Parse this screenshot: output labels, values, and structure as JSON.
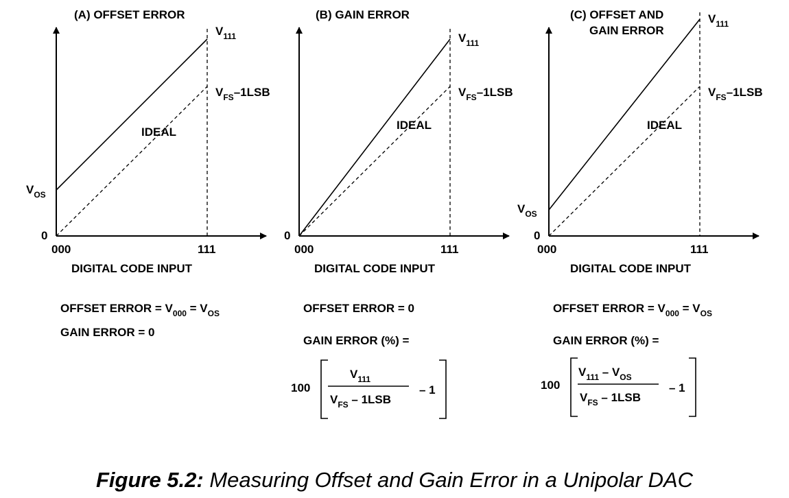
{
  "panels": [
    {
      "title": "(A) OFFSET ERROR",
      "y_top_label": "V",
      "y_top_sub": "111",
      "y_mid_label": "V",
      "y_mid_sub": "FS",
      "y_mid_rest": "–1LSB",
      "ideal_label": "IDEAL",
      "offset_label": "V",
      "offset_sub": "OS",
      "zero_label": "0",
      "x_start_label": "000",
      "x_end_label": "111",
      "x_axis_label": "DIGITAL CODE INPUT",
      "offset_eq": {
        "prefix": "OFFSET ERROR = V",
        "sub1": "000",
        "mid": " = V",
        "sub2": "OS"
      },
      "gain_eq": "GAIN ERROR = 0"
    },
    {
      "title": "(B) GAIN ERROR",
      "y_top_label": "V",
      "y_top_sub": "111",
      "y_mid_label": "V",
      "y_mid_sub": "FS",
      "y_mid_rest": "–1LSB",
      "ideal_label": "IDEAL",
      "zero_label": "0",
      "x_start_label": "000",
      "x_end_label": "111",
      "x_axis_label": "DIGITAL CODE INPUT",
      "offset_eq": "OFFSET ERROR = 0",
      "gain_eq": "GAIN ERROR (%) =",
      "formula": {
        "coef": "100",
        "num_v": "V",
        "num_sub": "111",
        "den_v": "V",
        "den_sub": "FS",
        "den_rest": " – 1LSB",
        "minus": "– 1"
      }
    },
    {
      "title_line1": "(C) OFFSET AND",
      "title_line2": "GAIN ERROR",
      "y_top_label": "V",
      "y_top_sub": "111",
      "y_mid_label": "V",
      "y_mid_sub": "FS",
      "y_mid_rest": "–1LSB",
      "ideal_label": "IDEAL",
      "offset_label": "V",
      "offset_sub": "OS",
      "zero_label": "0",
      "x_start_label": "000",
      "x_end_label": "111",
      "x_axis_label": "DIGITAL CODE INPUT",
      "offset_eq": {
        "prefix": "OFFSET ERROR = V",
        "sub1": "000",
        "mid": " = V",
        "sub2": "OS"
      },
      "gain_eq": "GAIN ERROR (%) =",
      "formula": {
        "coef": "100",
        "num_v": "V",
        "num_sub": "111",
        "num_mid": " – V",
        "num_sub2": "OS",
        "den_v": "V",
        "den_sub": "FS",
        "den_rest": " – 1LSB",
        "minus": "– 1"
      }
    }
  ],
  "caption": {
    "bold": "Figure 5.2:",
    "rest": " Measuring Offset and Gain Error in a Unipolar DAC"
  }
}
